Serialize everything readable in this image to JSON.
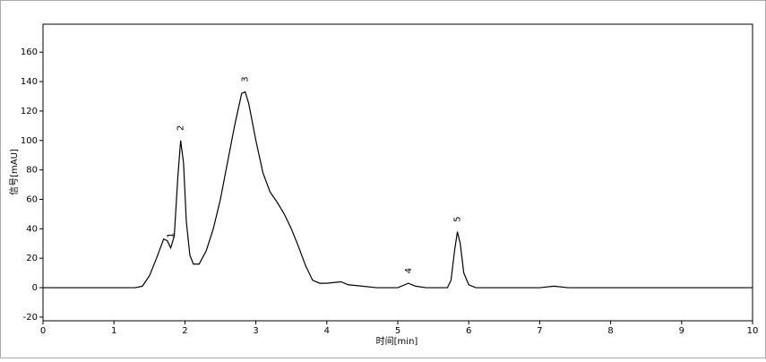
{
  "chart_data": {
    "type": "line",
    "xlabel": "时间[min]",
    "ylabel": "信号[mAU]",
    "x": [
      0,
      1.3,
      1.4,
      1.5,
      1.6,
      1.7,
      1.75,
      1.8,
      1.85,
      1.9,
      1.94,
      1.98,
      2.02,
      2.07,
      2.12,
      2.2,
      2.3,
      2.4,
      2.5,
      2.6,
      2.7,
      2.8,
      2.85,
      2.9,
      3.0,
      3.1,
      3.2,
      3.3,
      3.4,
      3.5,
      3.6,
      3.7,
      3.8,
      3.9,
      4.0,
      4.2,
      4.3,
      4.5,
      4.7,
      5.0,
      5.1,
      5.15,
      5.25,
      5.4,
      5.7,
      5.75,
      5.8,
      5.84,
      5.88,
      5.93,
      6.0,
      6.1,
      7.0,
      7.2,
      7.4,
      10
    ],
    "values": [
      0,
      0,
      1,
      8,
      20,
      33,
      32,
      27,
      35,
      75,
      100,
      85,
      45,
      22,
      16,
      16,
      25,
      40,
      60,
      85,
      110,
      132,
      133,
      125,
      100,
      78,
      65,
      58,
      50,
      40,
      28,
      15,
      5,
      3,
      3,
      4,
      2,
      1,
      0,
      0,
      2,
      3,
      1,
      0,
      0,
      5,
      25,
      38,
      30,
      10,
      2,
      0,
      0,
      1,
      0,
      0
    ],
    "color": "#000000",
    "peaks": [
      {
        "label": "1",
        "x": 1.8
      },
      {
        "label": "2",
        "x": 1.94
      },
      {
        "label": "3",
        "x": 2.85
      },
      {
        "label": "4",
        "x": 5.15
      },
      {
        "label": "5",
        "x": 5.84
      }
    ],
    "xlim": [
      0,
      10
    ],
    "xticks": [
      0,
      1,
      2,
      3,
      4,
      5,
      6,
      7,
      8,
      9,
      10
    ],
    "ylim": [
      -22.5,
      179
    ],
    "yticks": [
      -20,
      0,
      20,
      40,
      60,
      80,
      100,
      120,
      140,
      160
    ],
    "grid": false
  }
}
